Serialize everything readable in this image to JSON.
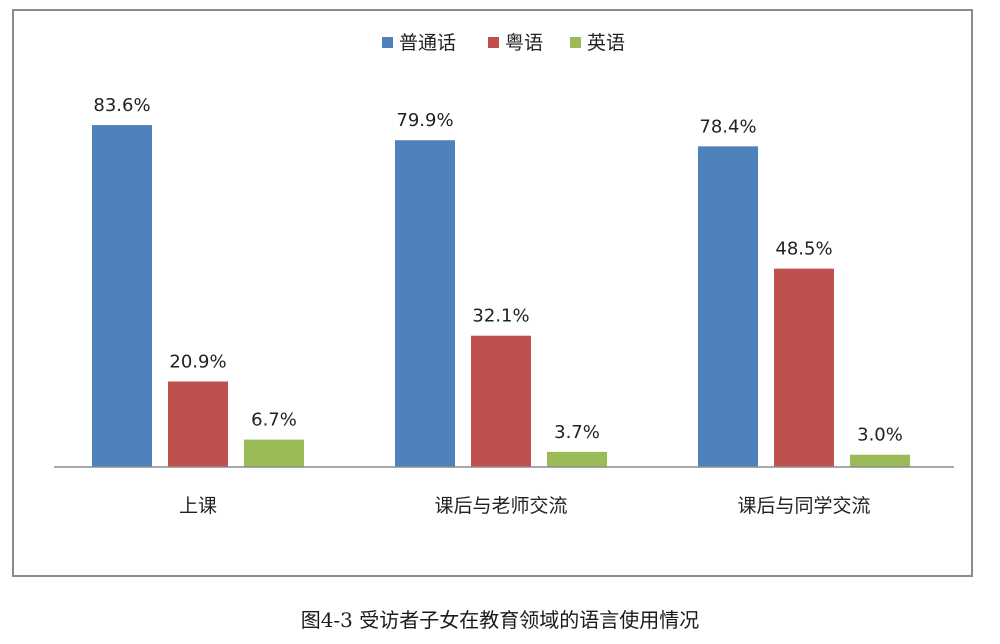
{
  "caption": "图4-3 受访者子女在教育领域的语言使用情况",
  "chart_data": {
    "type": "bar",
    "categories": [
      "上课",
      "课后与老师交流",
      "课后与同学交流"
    ],
    "series": [
      {
        "name": "普通话",
        "values": [
          83.6,
          79.9,
          78.4
        ],
        "labels": [
          "83.6%",
          "79.9%",
          "78.4%"
        ],
        "color": "#4f81bd"
      },
      {
        "name": "粤语",
        "values": [
          20.9,
          32.1,
          48.5
        ],
        "labels": [
          "20.9%",
          "32.1%",
          "48.5%"
        ],
        "color": "#c0504d"
      },
      {
        "name": "英语",
        "values": [
          6.7,
          3.7,
          3.0
        ],
        "labels": [
          "6.7%",
          "3.7%",
          "3.0%"
        ],
        "color": "#9bbb59"
      }
    ],
    "ylim": [
      0,
      100
    ],
    "grid": false,
    "legend_position": "top-center"
  }
}
